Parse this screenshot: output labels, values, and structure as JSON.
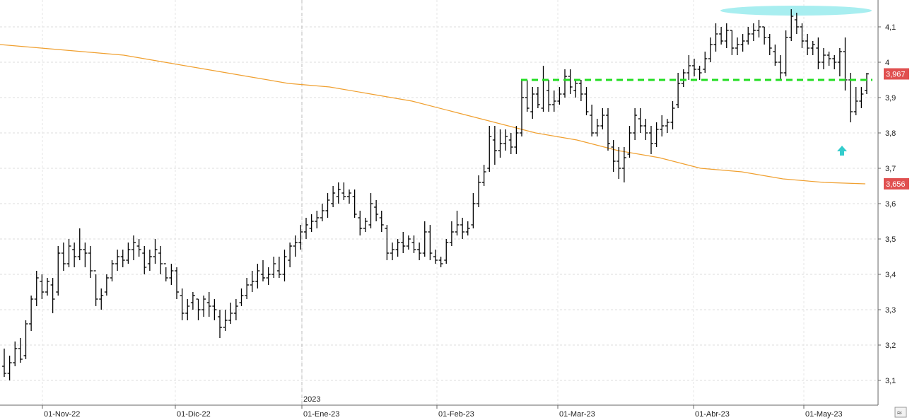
{
  "chart_data": {
    "type": "ohlc",
    "title": "",
    "xlabel": "",
    "ylabel": "",
    "ylim": [
      3.03,
      4.17
    ],
    "y_ticks": [
      "3,1",
      "3,2",
      "3,3",
      "3,4",
      "3,5",
      "3,6",
      "3,7",
      "3,8",
      "3,9",
      "4",
      "4,1"
    ],
    "y_tick_values": [
      3.1,
      3.2,
      3.3,
      3.4,
      3.5,
      3.6,
      3.7,
      3.8,
      3.9,
      4.0,
      4.1
    ],
    "x_ticks": [
      "01-Nov-22",
      "01-Dic-22",
      "01-Ene-23",
      "01-Feb-23",
      "01-Mar-23",
      "01-Abr-23",
      "01-May-23"
    ],
    "year_label": "2023",
    "grid": true,
    "last_price_tag": {
      "label": "3,967",
      "value": 3.967,
      "color": "#e05050"
    },
    "ma_price_tag": {
      "label": "3,656",
      "value": 3.656,
      "color": "#e05050"
    },
    "support_level": {
      "value": 3.95,
      "color": "#22dd22"
    },
    "ma_color": "#f0a030",
    "bar_color": "#000000",
    "arrow_color": "#33cccc",
    "highlight_color": "#a8eef0",
    "ma_series": [
      4.05,
      4.04,
      4.03,
      4.02,
      4.0,
      3.98,
      3.96,
      3.94,
      3.93,
      3.91,
      3.89,
      3.86,
      3.83,
      3.8,
      3.78,
      3.75,
      3.73,
      3.7,
      3.69,
      3.67,
      3.66,
      3.656
    ],
    "ohlc": [
      [
        3.14,
        3.19,
        3.11,
        3.12
      ],
      [
        3.12,
        3.17,
        3.1,
        3.15
      ],
      [
        3.15,
        3.21,
        3.14,
        3.19
      ],
      [
        3.19,
        3.22,
        3.15,
        3.16
      ],
      [
        3.17,
        3.27,
        3.16,
        3.26
      ],
      [
        3.26,
        3.34,
        3.24,
        3.33
      ],
      [
        3.33,
        3.41,
        3.31,
        3.39
      ],
      [
        3.38,
        3.4,
        3.33,
        3.35
      ],
      [
        3.35,
        3.39,
        3.34,
        3.38
      ],
      [
        3.37,
        3.39,
        3.29,
        3.33
      ],
      [
        3.35,
        3.48,
        3.34,
        3.46
      ],
      [
        3.46,
        3.49,
        3.41,
        3.43
      ],
      [
        3.43,
        3.5,
        3.42,
        3.48
      ],
      [
        3.47,
        3.49,
        3.42,
        3.45
      ],
      [
        3.45,
        3.53,
        3.44,
        3.47
      ],
      [
        3.47,
        3.49,
        3.42,
        3.46
      ],
      [
        3.46,
        3.48,
        3.39,
        3.41
      ],
      [
        3.41,
        3.4,
        3.31,
        3.33
      ],
      [
        3.33,
        3.36,
        3.3,
        3.34
      ],
      [
        3.35,
        3.4,
        3.34,
        3.39
      ],
      [
        3.39,
        3.44,
        3.38,
        3.43
      ],
      [
        3.43,
        3.47,
        3.41,
        3.45
      ],
      [
        3.45,
        3.47,
        3.42,
        3.44
      ],
      [
        3.44,
        3.49,
        3.43,
        3.47
      ],
      [
        3.47,
        3.51,
        3.44,
        3.49
      ],
      [
        3.48,
        3.5,
        3.45,
        3.47
      ],
      [
        3.46,
        3.48,
        3.4,
        3.42
      ],
      [
        3.43,
        3.47,
        3.41,
        3.45
      ],
      [
        3.45,
        3.5,
        3.43,
        3.47
      ],
      [
        3.46,
        3.48,
        3.4,
        3.43
      ],
      [
        3.43,
        3.42,
        3.38,
        3.39
      ],
      [
        3.39,
        3.43,
        3.37,
        3.41
      ],
      [
        3.41,
        3.42,
        3.33,
        3.35
      ],
      [
        3.34,
        3.36,
        3.27,
        3.29
      ],
      [
        3.29,
        3.33,
        3.27,
        3.31
      ],
      [
        3.32,
        3.35,
        3.3,
        3.34
      ],
      [
        3.33,
        3.33,
        3.27,
        3.3
      ],
      [
        3.3,
        3.34,
        3.28,
        3.33
      ],
      [
        3.32,
        3.35,
        3.28,
        3.31
      ],
      [
        3.31,
        3.33,
        3.27,
        3.3
      ],
      [
        3.28,
        3.3,
        3.22,
        3.25
      ],
      [
        3.25,
        3.3,
        3.24,
        3.27
      ],
      [
        3.27,
        3.32,
        3.26,
        3.29
      ],
      [
        3.29,
        3.33,
        3.27,
        3.31
      ],
      [
        3.32,
        3.36,
        3.31,
        3.34
      ],
      [
        3.34,
        3.39,
        3.33,
        3.37
      ],
      [
        3.37,
        3.41,
        3.35,
        3.38
      ],
      [
        3.38,
        3.43,
        3.36,
        3.41
      ],
      [
        3.4,
        3.44,
        3.38,
        3.39
      ],
      [
        3.39,
        3.42,
        3.37,
        3.4
      ],
      [
        3.4,
        3.45,
        3.39,
        3.43
      ],
      [
        3.41,
        3.45,
        3.39,
        3.4
      ],
      [
        3.4,
        3.47,
        3.38,
        3.45
      ],
      [
        3.44,
        3.49,
        3.42,
        3.48
      ],
      [
        3.48,
        3.51,
        3.45,
        3.49
      ],
      [
        3.49,
        3.54,
        3.47,
        3.52
      ],
      [
        3.52,
        3.56,
        3.5,
        3.54
      ],
      [
        3.53,
        3.57,
        3.52,
        3.55
      ],
      [
        3.55,
        3.58,
        3.53,
        3.56
      ],
      [
        3.56,
        3.6,
        3.55,
        3.58
      ],
      [
        3.58,
        3.63,
        3.56,
        3.61
      ],
      [
        3.6,
        3.65,
        3.59,
        3.63
      ],
      [
        3.62,
        3.66,
        3.6,
        3.64
      ],
      [
        3.63,
        3.66,
        3.61,
        3.62
      ],
      [
        3.62,
        3.64,
        3.6,
        3.63
      ],
      [
        3.62,
        3.64,
        3.56,
        3.57
      ],
      [
        3.56,
        3.58,
        3.51,
        3.53
      ],
      [
        3.53,
        3.56,
        3.52,
        3.55
      ],
      [
        3.54,
        3.63,
        3.53,
        3.6
      ],
      [
        3.59,
        3.61,
        3.55,
        3.57
      ],
      [
        3.56,
        3.58,
        3.52,
        3.54
      ],
      [
        3.53,
        3.54,
        3.44,
        3.46
      ],
      [
        3.46,
        3.49,
        3.44,
        3.47
      ],
      [
        3.47,
        3.5,
        3.45,
        3.49
      ],
      [
        3.49,
        3.52,
        3.46,
        3.48
      ],
      [
        3.48,
        3.51,
        3.47,
        3.5
      ],
      [
        3.49,
        3.51,
        3.46,
        3.47
      ],
      [
        3.47,
        3.49,
        3.44,
        3.46
      ],
      [
        3.46,
        3.55,
        3.45,
        3.52
      ],
      [
        3.52,
        3.54,
        3.44,
        3.46
      ],
      [
        3.45,
        3.47,
        3.43,
        3.44
      ],
      [
        3.44,
        3.45,
        3.42,
        3.43
      ],
      [
        3.44,
        3.5,
        3.43,
        3.49
      ],
      [
        3.49,
        3.55,
        3.48,
        3.52
      ],
      [
        3.52,
        3.58,
        3.51,
        3.54
      ],
      [
        3.54,
        3.56,
        3.5,
        3.52
      ],
      [
        3.52,
        3.55,
        3.51,
        3.53
      ],
      [
        3.54,
        3.63,
        3.53,
        3.6
      ],
      [
        3.6,
        3.68,
        3.59,
        3.66
      ],
      [
        3.66,
        3.71,
        3.65,
        3.69
      ],
      [
        3.7,
        3.82,
        3.69,
        3.79
      ],
      [
        3.78,
        3.82,
        3.71,
        3.75
      ],
      [
        3.75,
        3.81,
        3.73,
        3.77
      ],
      [
        3.77,
        3.81,
        3.75,
        3.79
      ],
      [
        3.78,
        3.8,
        3.74,
        3.76
      ],
      [
        3.76,
        3.82,
        3.74,
        3.8
      ],
      [
        3.8,
        3.95,
        3.79,
        3.9
      ],
      [
        3.9,
        3.95,
        3.86,
        3.87
      ],
      [
        3.86,
        3.93,
        3.84,
        3.91
      ],
      [
        3.91,
        3.93,
        3.87,
        3.88
      ],
      [
        3.87,
        3.99,
        3.86,
        3.95
      ],
      [
        3.92,
        3.95,
        3.86,
        3.88
      ],
      [
        3.88,
        3.92,
        3.86,
        3.89
      ],
      [
        3.89,
        3.93,
        3.88,
        3.91
      ],
      [
        3.91,
        3.98,
        3.9,
        3.96
      ],
      [
        3.96,
        3.98,
        3.91,
        3.93
      ],
      [
        3.92,
        3.95,
        3.9,
        3.94
      ],
      [
        3.94,
        3.95,
        3.89,
        3.91
      ],
      [
        3.91,
        3.93,
        3.85,
        3.86
      ],
      [
        3.85,
        3.88,
        3.79,
        3.8
      ],
      [
        3.8,
        3.84,
        3.79,
        3.82
      ],
      [
        3.82,
        3.87,
        3.81,
        3.85
      ],
      [
        3.85,
        3.87,
        3.75,
        3.77
      ],
      [
        3.76,
        3.78,
        3.69,
        3.72
      ],
      [
        3.72,
        3.76,
        3.67,
        3.7
      ],
      [
        3.7,
        3.76,
        3.66,
        3.73
      ],
      [
        3.74,
        3.82,
        3.73,
        3.8
      ],
      [
        3.8,
        3.87,
        3.78,
        3.85
      ],
      [
        3.84,
        3.87,
        3.8,
        3.82
      ],
      [
        3.82,
        3.84,
        3.78,
        3.8
      ],
      [
        3.8,
        3.82,
        3.74,
        3.77
      ],
      [
        3.77,
        3.83,
        3.76,
        3.81
      ],
      [
        3.81,
        3.85,
        3.79,
        3.82
      ],
      [
        3.82,
        3.84,
        3.8,
        3.83
      ],
      [
        3.83,
        3.89,
        3.81,
        3.87
      ],
      [
        3.88,
        3.97,
        3.87,
        3.94
      ],
      [
        3.94,
        3.98,
        3.93,
        3.97
      ],
      [
        3.97,
        4.02,
        3.95,
        3.99
      ],
      [
        3.99,
        4.01,
        3.96,
        3.98
      ],
      [
        3.98,
        3.99,
        3.95,
        3.97
      ],
      [
        3.98,
        4.03,
        3.97,
        4.01
      ],
      [
        4.01,
        4.07,
        4.0,
        4.05
      ],
      [
        4.05,
        4.11,
        4.03,
        4.08
      ],
      [
        4.08,
        4.1,
        4.05,
        4.06
      ],
      [
        4.06,
        4.11,
        4.04,
        4.09
      ],
      [
        4.09,
        4.09,
        4.02,
        4.04
      ],
      [
        4.04,
        4.07,
        4.02,
        4.05
      ],
      [
        4.05,
        4.08,
        4.03,
        4.06
      ],
      [
        4.06,
        4.1,
        4.05,
        4.08
      ],
      [
        4.08,
        4.11,
        4.06,
        4.09
      ],
      [
        4.09,
        4.12,
        4.07,
        4.1
      ],
      [
        4.1,
        4.1,
        4.05,
        4.07
      ],
      [
        4.07,
        4.08,
        4.02,
        4.04
      ],
      [
        4.03,
        4.05,
        3.99,
        4.0
      ],
      [
        4.0,
        4.02,
        3.95,
        3.97
      ],
      [
        3.97,
        4.09,
        3.96,
        4.07
      ],
      [
        4.07,
        4.15,
        4.06,
        4.13
      ],
      [
        4.12,
        4.14,
        4.08,
        4.1
      ],
      [
        4.1,
        4.11,
        4.04,
        4.06
      ],
      [
        4.06,
        4.08,
        4.02,
        4.04
      ],
      [
        4.04,
        4.06,
        4.02,
        4.05
      ],
      [
        4.04,
        4.07,
        3.98,
        4.0
      ],
      [
        4.0,
        4.04,
        3.98,
        4.02
      ],
      [
        4.02,
        4.03,
        3.99,
        4.01
      ],
      [
        4.01,
        4.02,
        3.98,
        4.0
      ],
      [
        4.0,
        4.04,
        3.96,
        4.03
      ],
      [
        4.03,
        4.07,
        3.92,
        3.95
      ],
      [
        3.95,
        3.97,
        3.83,
        3.86
      ],
      [
        3.86,
        3.93,
        3.85,
        3.89
      ],
      [
        3.89,
        3.93,
        3.87,
        3.91
      ],
      [
        3.92,
        3.97,
        3.91,
        3.967
      ]
    ]
  }
}
